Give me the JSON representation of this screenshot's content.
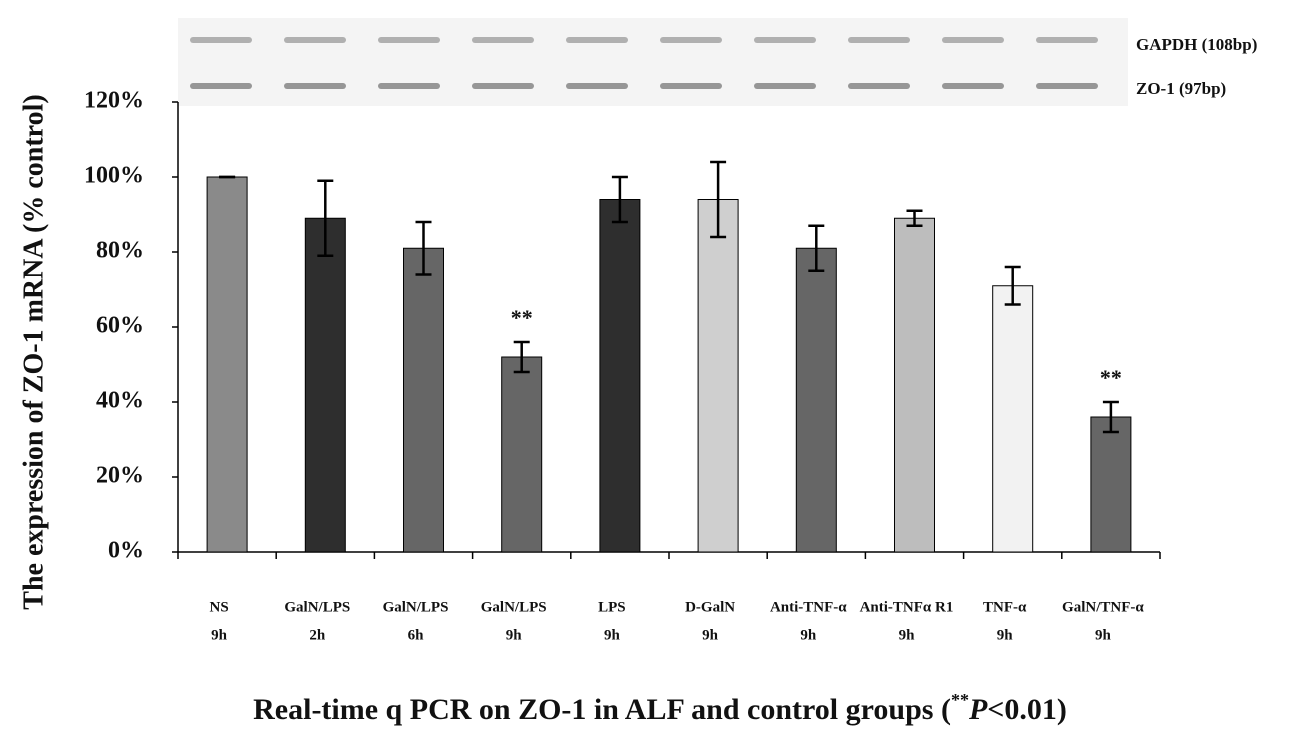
{
  "chart_data": {
    "type": "bar",
    "title": [
      "Real-time q PCR on ZO-1 in ALF and control groups (",
      "**",
      "P",
      "<0.01)"
    ],
    "y_label": "The expression of ZO-1 mRNA (% control)",
    "gel_labels": [
      "GAPDH (108bp)",
      "ZO-1 (97bp)"
    ],
    "categories": [
      [
        "NS",
        "9h"
      ],
      [
        "GalN/LPS",
        "2h"
      ],
      [
        "GalN/LPS",
        "6h"
      ],
      [
        "GalN/LPS",
        "9h"
      ],
      [
        "LPS",
        "9h"
      ],
      [
        "D-GalN",
        "9h"
      ],
      [
        "Anti-TNF-α",
        "9h"
      ],
      [
        "Anti-TNFα R1",
        "9h"
      ],
      [
        "TNF-α",
        "9h"
      ],
      [
        "GalN/TNF-α",
        "9h"
      ]
    ],
    "values": [
      100,
      89,
      81,
      52,
      94,
      94,
      81,
      89,
      71,
      36
    ],
    "errors": [
      0,
      10,
      7,
      4,
      6,
      10,
      6,
      2,
      5,
      4
    ],
    "colors": [
      "#8a8a8a",
      "#2e2e2e",
      "#666666",
      "#666666",
      "#2e2e2e",
      "#cfcfcf",
      "#666666",
      "#bdbdbd",
      "#f2f2f2",
      "#666666"
    ],
    "annotations": [
      {
        "text": "**",
        "category": 3
      },
      {
        "text": "**",
        "category": 9
      }
    ],
    "ylim": [
      0,
      120
    ],
    "yticks": [
      {
        "value": 0,
        "label": "0%"
      },
      {
        "value": 20,
        "label": "20%"
      },
      {
        "value": 40,
        "label": "40%"
      },
      {
        "value": 60,
        "label": "60%"
      },
      {
        "value": 80,
        "label": "80%"
      },
      {
        "value": 100,
        "label": "100%"
      },
      {
        "value": 120,
        "label": "120%"
      }
    ]
  }
}
